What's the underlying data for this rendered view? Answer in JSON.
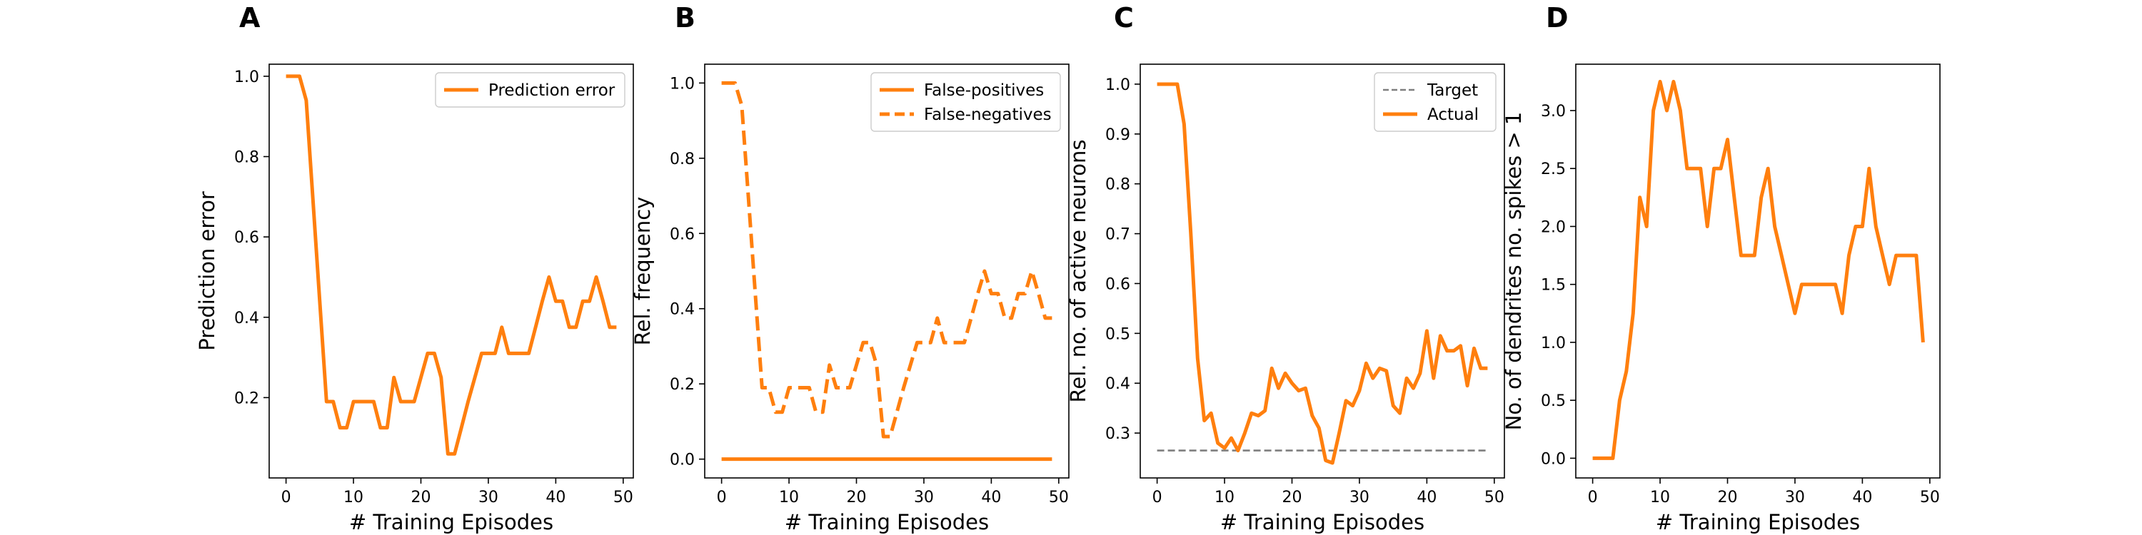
{
  "colors": {
    "orange": "#ff7f0e",
    "target": "#7f7f7f",
    "axis": "#000000"
  },
  "chart_data": [
    {
      "type": "line",
      "panel": "A",
      "xlabel": "# Training Episodes",
      "ylabel": "Prediction error",
      "xlim": [
        -2.5,
        51.5
      ],
      "ylim": [
        0.0,
        1.03
      ],
      "xticks": [
        0,
        10,
        20,
        30,
        40,
        50
      ],
      "yticks": [
        0.2,
        0.4,
        0.6,
        0.8,
        1.0
      ],
      "legend": "top-right",
      "series": [
        {
          "name": "Prediction error",
          "style": "solid",
          "x": [
            0,
            1,
            2,
            3,
            4,
            5,
            6,
            7,
            8,
            9,
            10,
            11,
            12,
            13,
            14,
            15,
            16,
            17,
            18,
            19,
            20,
            21,
            22,
            23,
            24,
            25,
            26,
            27,
            28,
            29,
            30,
            31,
            32,
            33,
            34,
            35,
            36,
            37,
            38,
            39,
            40,
            41,
            42,
            43,
            44,
            45,
            46,
            47,
            48,
            49
          ],
          "y": [
            1.0,
            1.0,
            1.0,
            0.94,
            0.69,
            0.44,
            0.19,
            0.19,
            0.125,
            0.125,
            0.19,
            0.19,
            0.19,
            0.19,
            0.125,
            0.125,
            0.25,
            0.19,
            0.19,
            0.19,
            0.25,
            0.31,
            0.31,
            0.25,
            0.06,
            0.06,
            0.125,
            0.19,
            0.25,
            0.31,
            0.31,
            0.31,
            0.375,
            0.31,
            0.31,
            0.31,
            0.31,
            0.375,
            0.44,
            0.5,
            0.44,
            0.44,
            0.375,
            0.375,
            0.44,
            0.44,
            0.5,
            0.44,
            0.375,
            0.375
          ]
        }
      ]
    },
    {
      "type": "line",
      "panel": "B",
      "xlabel": "# Training Episodes",
      "ylabel": "Rel. frequency",
      "xlim": [
        -2.5,
        51.5
      ],
      "ylim": [
        -0.05,
        1.05
      ],
      "xticks": [
        0,
        10,
        20,
        30,
        40,
        50
      ],
      "yticks": [
        0.0,
        0.2,
        0.4,
        0.6,
        0.8,
        1.0
      ],
      "legend": "top-right",
      "series": [
        {
          "name": "False-positives",
          "style": "solid",
          "x": [
            0,
            1,
            2,
            3,
            4,
            5,
            6,
            7,
            8,
            9,
            10,
            11,
            12,
            13,
            14,
            15,
            16,
            17,
            18,
            19,
            20,
            21,
            22,
            23,
            24,
            25,
            26,
            27,
            28,
            29,
            30,
            31,
            32,
            33,
            34,
            35,
            36,
            37,
            38,
            39,
            40,
            41,
            42,
            43,
            44,
            45,
            46,
            47,
            48,
            49
          ],
          "y": [
            0,
            0,
            0,
            0,
            0,
            0,
            0,
            0,
            0,
            0,
            0,
            0,
            0,
            0,
            0,
            0,
            0,
            0,
            0,
            0,
            0,
            0,
            0,
            0,
            0,
            0,
            0,
            0,
            0,
            0,
            0,
            0,
            0,
            0,
            0,
            0,
            0,
            0,
            0,
            0,
            0,
            0,
            0,
            0,
            0,
            0,
            0,
            0,
            0,
            0
          ]
        },
        {
          "name": "False-negatives",
          "style": "dashed",
          "x": [
            0,
            1,
            2,
            3,
            4,
            5,
            6,
            7,
            8,
            9,
            10,
            11,
            12,
            13,
            14,
            15,
            16,
            17,
            18,
            19,
            20,
            21,
            22,
            23,
            24,
            25,
            26,
            27,
            28,
            29,
            30,
            31,
            32,
            33,
            34,
            35,
            36,
            37,
            38,
            39,
            40,
            41,
            42,
            43,
            44,
            45,
            46,
            47,
            48,
            49
          ],
          "y": [
            1.0,
            1.0,
            1.0,
            0.94,
            0.69,
            0.44,
            0.19,
            0.19,
            0.125,
            0.125,
            0.19,
            0.19,
            0.19,
            0.19,
            0.125,
            0.125,
            0.25,
            0.19,
            0.19,
            0.19,
            0.25,
            0.31,
            0.31,
            0.25,
            0.06,
            0.06,
            0.125,
            0.19,
            0.25,
            0.31,
            0.31,
            0.31,
            0.375,
            0.31,
            0.31,
            0.31,
            0.31,
            0.375,
            0.44,
            0.5,
            0.44,
            0.44,
            0.375,
            0.375,
            0.44,
            0.44,
            0.5,
            0.44,
            0.375,
            0.375
          ]
        }
      ]
    },
    {
      "type": "line",
      "panel": "C",
      "xlabel": "# Training Episodes",
      "ylabel": "Rel. no. of active neurons",
      "xlim": [
        -2.5,
        51.5
      ],
      "ylim": [
        0.21,
        1.04
      ],
      "xticks": [
        0,
        10,
        20,
        30,
        40,
        50
      ],
      "yticks": [
        0.3,
        0.4,
        0.5,
        0.6,
        0.7,
        0.8,
        0.9,
        1.0
      ],
      "legend": "top-right",
      "series": [
        {
          "name": "Target",
          "style": "dashed-gray",
          "x": [
            0,
            49
          ],
          "y": [
            0.265,
            0.265
          ]
        },
        {
          "name": "Actual",
          "style": "solid",
          "x": [
            0,
            1,
            2,
            3,
            4,
            5,
            6,
            7,
            8,
            9,
            10,
            11,
            12,
            13,
            14,
            15,
            16,
            17,
            18,
            19,
            20,
            21,
            22,
            23,
            24,
            25,
            26,
            27,
            28,
            29,
            30,
            31,
            32,
            33,
            34,
            35,
            36,
            37,
            38,
            39,
            40,
            41,
            42,
            43,
            44,
            45,
            46,
            47,
            48,
            49
          ],
          "y": [
            1.0,
            1.0,
            1.0,
            1.0,
            0.92,
            0.7,
            0.45,
            0.325,
            0.34,
            0.28,
            0.27,
            0.29,
            0.265,
            0.3,
            0.34,
            0.335,
            0.345,
            0.43,
            0.39,
            0.42,
            0.4,
            0.385,
            0.39,
            0.335,
            0.31,
            0.245,
            0.24,
            0.3,
            0.365,
            0.355,
            0.385,
            0.44,
            0.41,
            0.43,
            0.425,
            0.355,
            0.34,
            0.41,
            0.39,
            0.42,
            0.505,
            0.41,
            0.495,
            0.465,
            0.465,
            0.475,
            0.395,
            0.47,
            0.43,
            0.43
          ]
        }
      ]
    },
    {
      "type": "line",
      "panel": "D",
      "xlabel": "# Training Episodes",
      "ylabel": "No. of dendrites no. spikes > 1",
      "xlim": [
        -2.5,
        51.5
      ],
      "ylim": [
        -0.17,
        3.4
      ],
      "xticks": [
        0,
        10,
        20,
        30,
        40,
        50
      ],
      "yticks": [
        0.0,
        0.5,
        1.0,
        1.5,
        2.0,
        2.5,
        3.0
      ],
      "series": [
        {
          "style": "solid",
          "x": [
            0,
            1,
            2,
            3,
            4,
            5,
            6,
            7,
            8,
            9,
            10,
            11,
            12,
            13,
            14,
            15,
            16,
            17,
            18,
            19,
            20,
            21,
            22,
            23,
            24,
            25,
            26,
            27,
            28,
            29,
            30,
            31,
            32,
            33,
            34,
            35,
            36,
            37,
            38,
            39,
            40,
            41,
            42,
            43,
            44,
            45,
            46,
            47,
            48,
            49
          ],
          "y": [
            0,
            0,
            0,
            0,
            0.5,
            0.75,
            1.25,
            2.25,
            2.0,
            3.0,
            3.25,
            3.0,
            3.25,
            3.0,
            2.5,
            2.5,
            2.5,
            2.0,
            2.5,
            2.5,
            2.75,
            2.25,
            1.75,
            1.75,
            1.75,
            2.25,
            2.5,
            2.0,
            1.75,
            1.5,
            1.25,
            1.5,
            1.5,
            1.5,
            1.5,
            1.5,
            1.5,
            1.25,
            1.75,
            2.0,
            2.0,
            2.5,
            2.0,
            1.75,
            1.5,
            1.75,
            1.75,
            1.75,
            1.75,
            1.0
          ]
        }
      ]
    }
  ]
}
